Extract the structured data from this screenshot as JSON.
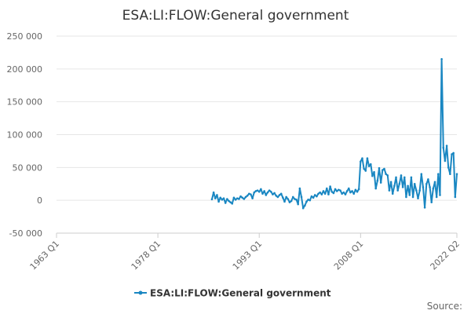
{
  "chart_data": {
    "type": "line",
    "title": "ESA:LI:FLOW:General government",
    "xlabel": "",
    "ylabel": "",
    "x_ticks": [
      "1963 Q1",
      "1978 Q1",
      "1993 Q1",
      "2008 Q1",
      "2022 Q2"
    ],
    "x_range": [
      "1963 Q1",
      "2022 Q2"
    ],
    "y_ticks": [
      "250 000",
      "200 000",
      "150 000",
      "100 000",
      "50 000",
      "0",
      "-50 000"
    ],
    "y_tick_values": [
      250000,
      200000,
      150000,
      100000,
      50000,
      0,
      -50000
    ],
    "ylim": [
      -50000,
      250000
    ],
    "grid": true,
    "legend_position": "bottom",
    "source_label": "Source:",
    "series": [
      {
        "name": "ESA:LI:FLOW:General government",
        "color": "#1a87c2",
        "points": [
          [
            "1986 Q1",
            1500
          ],
          [
            "1986 Q2",
            12000
          ],
          [
            "1986 Q3",
            3000
          ],
          [
            "1986 Q4",
            8000
          ],
          [
            "1987 Q1",
            -2000
          ],
          [
            "1987 Q2",
            4000
          ],
          [
            "1987 Q3",
            1000
          ],
          [
            "1987 Q4",
            3000
          ],
          [
            "1988 Q1",
            -4000
          ],
          [
            "1988 Q2",
            2000
          ],
          [
            "1988 Q3",
            -1000
          ],
          [
            "1988 Q4",
            -3000
          ],
          [
            "1989 Q1",
            -5000
          ],
          [
            "1989 Q2",
            4000
          ],
          [
            "1989 Q3",
            1000
          ],
          [
            "1989 Q4",
            3000
          ],
          [
            "1990 Q1",
            2000
          ],
          [
            "1990 Q2",
            6000
          ],
          [
            "1990 Q3",
            4000
          ],
          [
            "1990 Q4",
            2000
          ],
          [
            "1991 Q1",
            5000
          ],
          [
            "1991 Q2",
            7000
          ],
          [
            "1991 Q3",
            10000
          ],
          [
            "1991 Q4",
            9000
          ],
          [
            "1992 Q1",
            3000
          ],
          [
            "1992 Q2",
            12000
          ],
          [
            "1992 Q3",
            14000
          ],
          [
            "1992 Q4",
            15000
          ],
          [
            "1993 Q1",
            13000
          ],
          [
            "1993 Q2",
            17000
          ],
          [
            "1993 Q3",
            10000
          ],
          [
            "1993 Q4",
            14000
          ],
          [
            "1994 Q1",
            8000
          ],
          [
            "1994 Q2",
            12000
          ],
          [
            "1994 Q3",
            15000
          ],
          [
            "1994 Q4",
            13000
          ],
          [
            "1995 Q1",
            9000
          ],
          [
            "1995 Q2",
            11000
          ],
          [
            "1995 Q3",
            7000
          ],
          [
            "1995 Q4",
            5000
          ],
          [
            "1996 Q1",
            8000
          ],
          [
            "1996 Q2",
            10000
          ],
          [
            "1996 Q3",
            4000
          ],
          [
            "1996 Q4",
            -2000
          ],
          [
            "1997 Q1",
            5000
          ],
          [
            "1997 Q2",
            2000
          ],
          [
            "1997 Q3",
            -3000
          ],
          [
            "1997 Q4",
            -1000
          ],
          [
            "1998 Q1",
            5000
          ],
          [
            "1998 Q2",
            2000
          ],
          [
            "1998 Q3",
            1000
          ],
          [
            "1998 Q4",
            -6000
          ],
          [
            "1999 Q1",
            18000
          ],
          [
            "1999 Q2",
            5000
          ],
          [
            "1999 Q3",
            -12000
          ],
          [
            "1999 Q4",
            -8000
          ],
          [
            "2000 Q1",
            -2000
          ],
          [
            "2000 Q2",
            1000
          ],
          [
            "2000 Q3",
            0
          ],
          [
            "2000 Q4",
            6000
          ],
          [
            "2001 Q1",
            4000
          ],
          [
            "2001 Q2",
            8000
          ],
          [
            "2001 Q3",
            6000
          ],
          [
            "2001 Q4",
            10000
          ],
          [
            "2002 Q1",
            12000
          ],
          [
            "2002 Q2",
            9000
          ],
          [
            "2002 Q3",
            14000
          ],
          [
            "2002 Q4",
            10000
          ],
          [
            "2003 Q1",
            18000
          ],
          [
            "2003 Q2",
            9000
          ],
          [
            "2003 Q3",
            21000
          ],
          [
            "2003 Q4",
            13000
          ],
          [
            "2004 Q1",
            11000
          ],
          [
            "2004 Q2",
            17000
          ],
          [
            "2004 Q3",
            14000
          ],
          [
            "2004 Q4",
            16000
          ],
          [
            "2005 Q1",
            15000
          ],
          [
            "2005 Q2",
            10000
          ],
          [
            "2005 Q3",
            12000
          ],
          [
            "2005 Q4",
            9000
          ],
          [
            "2006 Q1",
            14000
          ],
          [
            "2006 Q2",
            18000
          ],
          [
            "2006 Q3",
            12000
          ],
          [
            "2006 Q4",
            14000
          ],
          [
            "2007 Q1",
            10000
          ],
          [
            "2007 Q2",
            16000
          ],
          [
            "2007 Q3",
            13000
          ],
          [
            "2007 Q4",
            17000
          ],
          [
            "2008 Q1",
            59000
          ],
          [
            "2008 Q2",
            64000
          ],
          [
            "2008 Q3",
            48000
          ],
          [
            "2008 Q4",
            45000
          ],
          [
            "2009 Q1",
            64000
          ],
          [
            "2009 Q2",
            52000
          ],
          [
            "2009 Q3",
            55000
          ],
          [
            "2009 Q4",
            37000
          ],
          [
            "2010 Q1",
            43000
          ],
          [
            "2010 Q2",
            18000
          ],
          [
            "2010 Q3",
            30000
          ],
          [
            "2010 Q4",
            49000
          ],
          [
            "2011 Q1",
            27000
          ],
          [
            "2011 Q2",
            46000
          ],
          [
            "2011 Q3",
            48000
          ],
          [
            "2011 Q4",
            40000
          ],
          [
            "2012 Q1",
            38000
          ],
          [
            "2012 Q2",
            15000
          ],
          [
            "2012 Q3",
            28000
          ],
          [
            "2012 Q4",
            10000
          ],
          [
            "2013 Q1",
            22000
          ],
          [
            "2013 Q2",
            35000
          ],
          [
            "2013 Q3",
            15000
          ],
          [
            "2013 Q4",
            25000
          ],
          [
            "2014 Q1",
            38000
          ],
          [
            "2014 Q2",
            20000
          ],
          [
            "2014 Q3",
            35000
          ],
          [
            "2014 Q4",
            5000
          ],
          [
            "2015 Q1",
            22000
          ],
          [
            "2015 Q2",
            8000
          ],
          [
            "2015 Q3",
            35000
          ],
          [
            "2015 Q4",
            5000
          ],
          [
            "2016 Q1",
            25000
          ],
          [
            "2016 Q2",
            15000
          ],
          [
            "2016 Q3",
            3000
          ],
          [
            "2016 Q4",
            15000
          ],
          [
            "2017 Q1",
            40000
          ],
          [
            "2017 Q2",
            20000
          ],
          [
            "2017 Q3",
            -11000
          ],
          [
            "2017 Q4",
            25000
          ],
          [
            "2018 Q1",
            32000
          ],
          [
            "2018 Q2",
            20000
          ],
          [
            "2018 Q3",
            -3000
          ],
          [
            "2018 Q4",
            18000
          ],
          [
            "2019 Q1",
            28000
          ],
          [
            "2019 Q2",
            5000
          ],
          [
            "2019 Q3",
            40000
          ],
          [
            "2019 Q4",
            8000
          ],
          [
            "2020 Q1",
            215000
          ],
          [
            "2020 Q2",
            80000
          ],
          [
            "2020 Q3",
            60000
          ],
          [
            "2020 Q4",
            83000
          ],
          [
            "2021 Q1",
            50000
          ],
          [
            "2021 Q2",
            40000
          ],
          [
            "2021 Q3",
            70000
          ],
          [
            "2021 Q4",
            72000
          ],
          [
            "2022 Q1",
            5000
          ],
          [
            "2022 Q2",
            40000
          ]
        ]
      }
    ]
  }
}
